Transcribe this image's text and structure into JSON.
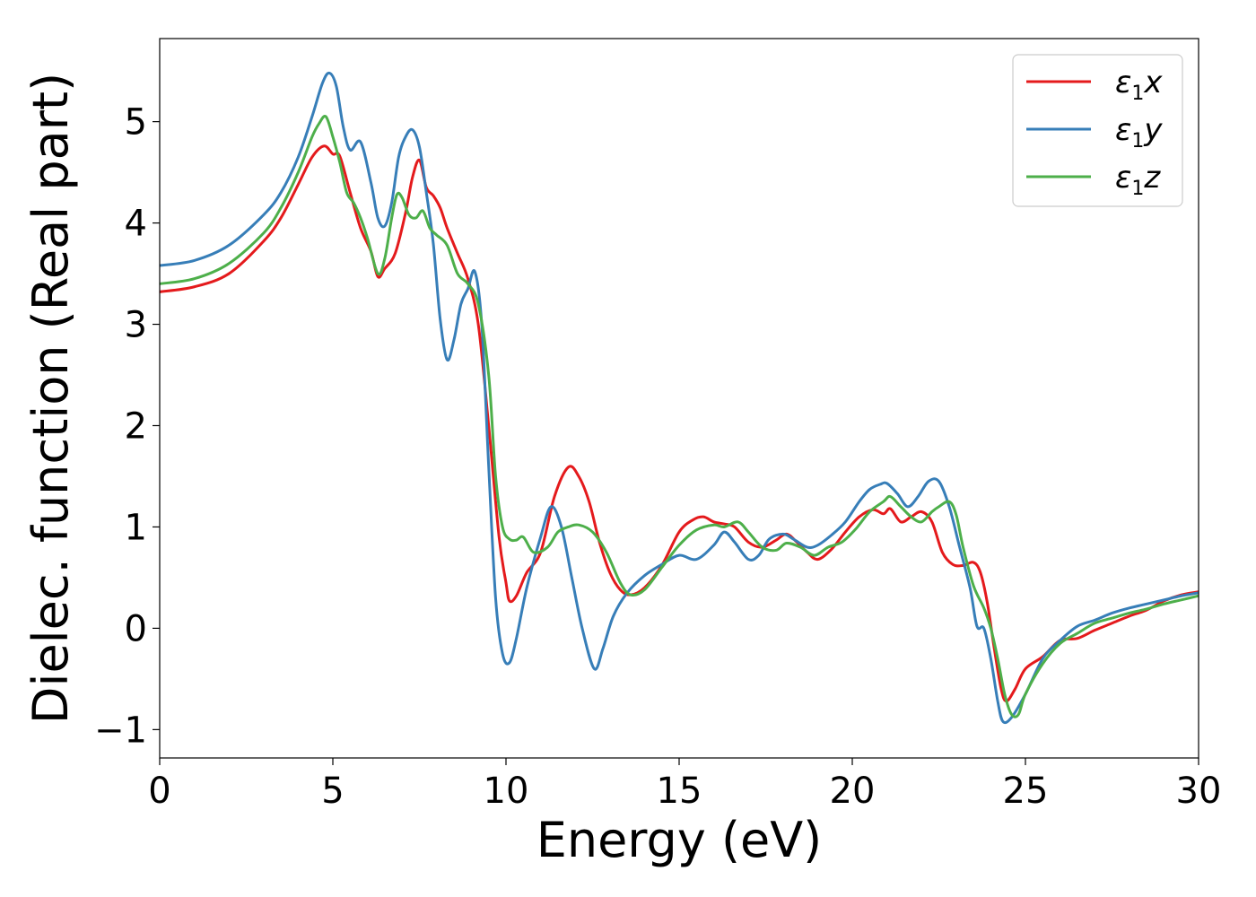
{
  "chart_data": {
    "type": "line",
    "xlabel": "Energy (eV)",
    "ylabel": "Dielec. function (Real part)",
    "xlim": [
      0,
      30
    ],
    "ylim": [
      -1.28,
      5.82
    ],
    "xticks": [
      0,
      5,
      10,
      15,
      20,
      25,
      30
    ],
    "xtick_labels": [
      "0",
      "5",
      "10",
      "15",
      "20",
      "25",
      "30"
    ],
    "yticks": [
      -1,
      0,
      1,
      2,
      3,
      4,
      5
    ],
    "ytick_labels": [
      "−1",
      "0",
      "1",
      "2",
      "3",
      "4",
      "5"
    ],
    "grid": false,
    "legend_position": "top-right",
    "series": [
      {
        "name": "ε₁x",
        "legend_main": "ε",
        "legend_sub": "1",
        "legend_tail": "x",
        "color": "#e41a1c",
        "x": [
          0,
          1,
          2,
          3,
          3.5,
          4,
          4.4,
          4.75,
          5.0,
          5.2,
          5.5,
          5.8,
          6.1,
          6.3,
          6.5,
          6.8,
          7.1,
          7.3,
          7.5,
          7.7,
          7.9,
          8.1,
          8.3,
          8.6,
          8.9,
          9.2,
          9.5,
          9.8,
          10.0,
          10.1,
          10.3,
          10.6,
          11.0,
          11.4,
          11.8,
          12.1,
          12.4,
          12.7,
          13.0,
          13.3,
          13.6,
          14.0,
          14.5,
          15.0,
          15.4,
          15.7,
          16.0,
          16.3,
          16.6,
          17.0,
          17.4,
          17.8,
          18.1,
          18.4,
          18.7,
          19.0,
          19.4,
          19.8,
          20.2,
          20.6,
          20.9,
          21.1,
          21.4,
          21.7,
          22.0,
          22.3,
          22.6,
          22.9,
          23.2,
          23.5,
          23.7,
          23.9,
          24.1,
          24.3,
          24.45,
          24.7,
          25.0,
          25.5,
          26.0,
          26.5,
          27.0,
          27.5,
          28.0,
          28.5,
          29.0,
          29.5,
          30
        ],
        "y": [
          3.32,
          3.37,
          3.5,
          3.82,
          4.05,
          4.38,
          4.65,
          4.76,
          4.68,
          4.66,
          4.3,
          3.95,
          3.72,
          3.47,
          3.55,
          3.7,
          4.1,
          4.45,
          4.62,
          4.35,
          4.27,
          4.15,
          3.95,
          3.7,
          3.45,
          3.0,
          2.0,
          0.9,
          0.45,
          0.27,
          0.32,
          0.55,
          0.75,
          1.3,
          1.59,
          1.5,
          1.25,
          0.85,
          0.55,
          0.38,
          0.33,
          0.4,
          0.62,
          0.95,
          1.07,
          1.1,
          1.05,
          1.03,
          1.0,
          0.85,
          0.8,
          0.87,
          0.93,
          0.85,
          0.75,
          0.68,
          0.78,
          0.95,
          1.1,
          1.17,
          1.13,
          1.18,
          1.05,
          1.1,
          1.15,
          1.05,
          0.75,
          0.63,
          0.62,
          0.65,
          0.55,
          0.25,
          -0.2,
          -0.6,
          -0.72,
          -0.6,
          -0.4,
          -0.28,
          -0.12,
          -0.1,
          -0.02,
          0.05,
          0.12,
          0.18,
          0.27,
          0.33,
          0.36
        ]
      },
      {
        "name": "ε₁y",
        "legend_main": "ε",
        "legend_sub": "1",
        "legend_tail": "y",
        "color": "#377eb8",
        "x": [
          0,
          1,
          2,
          3,
          3.5,
          4,
          4.4,
          4.7,
          4.9,
          5.1,
          5.3,
          5.5,
          5.8,
          6.1,
          6.3,
          6.5,
          6.7,
          6.9,
          7.1,
          7.3,
          7.5,
          7.7,
          7.9,
          8.1,
          8.3,
          8.5,
          8.7,
          8.9,
          9.1,
          9.3,
          9.5,
          9.7,
          9.9,
          10.1,
          10.3,
          10.6,
          11.0,
          11.3,
          11.6,
          11.9,
          12.2,
          12.55,
          12.8,
          13.1,
          13.5,
          14.0,
          14.5,
          15.0,
          15.5,
          16.0,
          16.3,
          16.6,
          17.0,
          17.3,
          17.6,
          18.0,
          18.3,
          18.7,
          19.0,
          19.4,
          19.8,
          20.2,
          20.5,
          20.8,
          21.0,
          21.3,
          21.6,
          21.9,
          22.2,
          22.5,
          22.8,
          23.1,
          23.4,
          23.6,
          23.8,
          24.0,
          24.2,
          24.35,
          24.6,
          25.0,
          25.5,
          26.0,
          26.5,
          27.0,
          27.5,
          28.0,
          28.5,
          29.0,
          29.5,
          30
        ],
        "y": [
          3.58,
          3.63,
          3.78,
          4.08,
          4.3,
          4.65,
          5.05,
          5.38,
          5.48,
          5.35,
          4.95,
          4.72,
          4.8,
          4.4,
          4.05,
          3.97,
          4.2,
          4.65,
          4.85,
          4.92,
          4.75,
          4.3,
          3.8,
          3.05,
          2.65,
          2.85,
          3.2,
          3.35,
          3.52,
          3.0,
          1.6,
          0.3,
          -0.25,
          -0.34,
          -0.1,
          0.4,
          0.9,
          1.2,
          1.0,
          0.5,
          0.0,
          -0.4,
          -0.2,
          0.12,
          0.35,
          0.52,
          0.63,
          0.72,
          0.68,
          0.82,
          0.95,
          0.85,
          0.68,
          0.72,
          0.88,
          0.93,
          0.88,
          0.8,
          0.82,
          0.92,
          1.05,
          1.25,
          1.37,
          1.42,
          1.43,
          1.33,
          1.2,
          1.3,
          1.45,
          1.45,
          1.2,
          0.8,
          0.4,
          0.02,
          0.0,
          -0.3,
          -0.72,
          -0.92,
          -0.88,
          -0.65,
          -0.3,
          -0.12,
          0.02,
          0.08,
          0.15,
          0.2,
          0.24,
          0.28,
          0.32,
          0.35
        ]
      },
      {
        "name": "ε₁z",
        "legend_main": "ε",
        "legend_sub": "1",
        "legend_tail": "z",
        "color": "#4daf4a",
        "x": [
          0,
          1,
          2,
          3,
          3.5,
          4,
          4.4,
          4.6,
          4.8,
          5.0,
          5.2,
          5.4,
          5.6,
          5.8,
          6.0,
          6.3,
          6.5,
          6.7,
          6.85,
          7.0,
          7.2,
          7.4,
          7.6,
          7.8,
          8.0,
          8.3,
          8.6,
          8.9,
          9.2,
          9.5,
          9.7,
          9.9,
          10.1,
          10.3,
          10.5,
          10.8,
          11.2,
          11.5,
          11.8,
          12.1,
          12.5,
          12.9,
          13.3,
          13.6,
          14.0,
          14.5,
          15.0,
          15.5,
          16.0,
          16.3,
          16.7,
          17.0,
          17.4,
          17.8,
          18.1,
          18.5,
          18.9,
          19.3,
          19.7,
          20.1,
          20.5,
          20.9,
          21.1,
          21.4,
          21.7,
          22.0,
          22.3,
          22.5,
          22.8,
          23.0,
          23.2,
          23.5,
          23.8,
          24.0,
          24.2,
          24.4,
          24.6,
          24.8,
          25.0,
          25.5,
          26.0,
          26.5,
          27.0,
          27.5,
          28.0,
          28.5,
          29.0,
          29.5,
          30
        ],
        "y": [
          3.4,
          3.45,
          3.6,
          3.9,
          4.15,
          4.5,
          4.85,
          4.98,
          5.05,
          4.85,
          4.6,
          4.3,
          4.2,
          4.05,
          3.85,
          3.5,
          3.65,
          4.05,
          4.28,
          4.25,
          4.08,
          4.05,
          4.12,
          3.95,
          3.88,
          3.78,
          3.5,
          3.4,
          3.2,
          2.5,
          1.5,
          1.0,
          0.88,
          0.87,
          0.9,
          0.75,
          0.8,
          0.95,
          1.0,
          1.02,
          0.95,
          0.75,
          0.45,
          0.33,
          0.38,
          0.6,
          0.82,
          0.97,
          1.02,
          1.0,
          1.05,
          0.95,
          0.8,
          0.77,
          0.84,
          0.8,
          0.72,
          0.8,
          0.85,
          0.98,
          1.15,
          1.25,
          1.3,
          1.2,
          1.1,
          1.05,
          1.15,
          1.2,
          1.25,
          1.12,
          0.8,
          0.42,
          0.2,
          0.0,
          -0.3,
          -0.65,
          -0.85,
          -0.85,
          -0.65,
          -0.35,
          -0.15,
          -0.05,
          0.05,
          0.1,
          0.15,
          0.19,
          0.24,
          0.28,
          0.32
        ]
      }
    ]
  }
}
